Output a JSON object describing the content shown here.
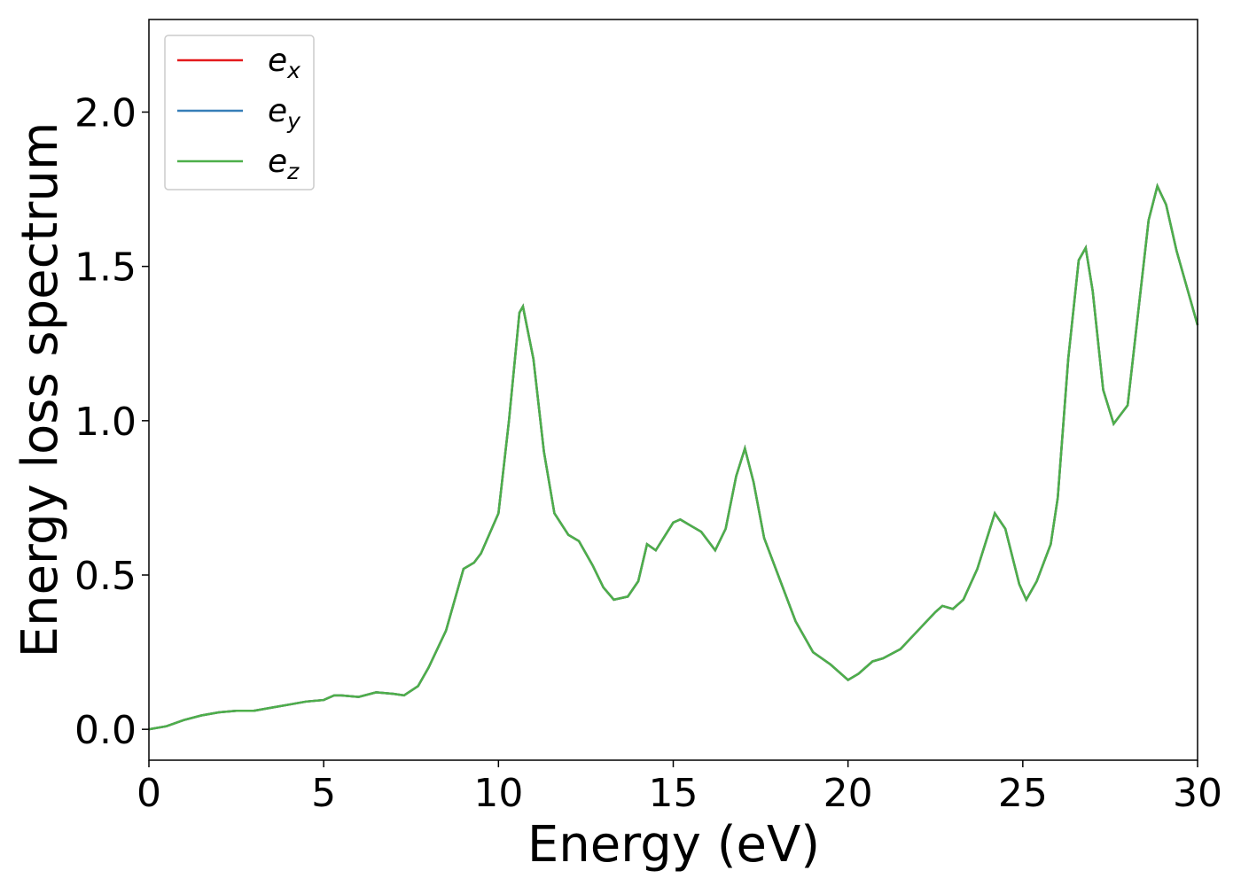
{
  "chart_data": {
    "type": "line",
    "xlabel": "Energy (eV)",
    "ylabel": "Energy loss spectrum",
    "x": [
      0,
      0.5,
      1,
      1.5,
      2,
      2.5,
      3,
      3.5,
      4,
      4.5,
      5,
      5.3,
      5.5,
      6,
      6.5,
      7,
      7.3,
      7.7,
      8,
      8.5,
      9,
      9.3,
      9.5,
      10,
      10.3,
      10.6,
      10.7,
      11,
      11.3,
      11.6,
      12,
      12.3,
      12.7,
      13,
      13.3,
      13.7,
      14,
      14.25,
      14.5,
      15,
      15.2,
      15.5,
      15.8,
      16.2,
      16.5,
      16.8,
      17.05,
      17.3,
      17.6,
      18,
      18.5,
      19,
      19.5,
      20,
      20.3,
      20.7,
      21,
      21.5,
      22,
      22.5,
      22.7,
      23,
      23.3,
      23.7,
      24.2,
      24.5,
      24.9,
      25.1,
      25.4,
      25.8,
      26,
      26.3,
      26.6,
      26.8,
      27,
      27.3,
      27.6,
      28,
      28.3,
      28.6,
      28.85,
      29.1,
      29.4,
      29.7,
      30
    ],
    "series": [
      {
        "name": "e_x",
        "color": "#e41a1c",
        "values": [
          0,
          0.01,
          0.03,
          0.045,
          0.055,
          0.06,
          0.06,
          0.07,
          0.08,
          0.09,
          0.095,
          0.11,
          0.11,
          0.105,
          0.12,
          0.115,
          0.11,
          0.14,
          0.2,
          0.32,
          0.52,
          0.54,
          0.57,
          0.7,
          1.0,
          1.35,
          1.37,
          1.2,
          0.9,
          0.7,
          0.63,
          0.61,
          0.53,
          0.46,
          0.42,
          0.43,
          0.48,
          0.6,
          0.58,
          0.67,
          0.68,
          0.66,
          0.64,
          0.58,
          0.65,
          0.82,
          0.91,
          0.8,
          0.62,
          0.5,
          0.35,
          0.25,
          0.21,
          0.16,
          0.18,
          0.22,
          0.23,
          0.26,
          0.32,
          0.38,
          0.4,
          0.39,
          0.42,
          0.52,
          0.7,
          0.65,
          0.47,
          0.42,
          0.48,
          0.6,
          0.75,
          1.2,
          1.52,
          1.56,
          1.42,
          1.1,
          0.99,
          1.05,
          1.35,
          1.65,
          1.76,
          1.7,
          1.55,
          1.43,
          1.31
        ]
      },
      {
        "name": "e_y",
        "color": "#377eb8",
        "values": [
          0,
          0.01,
          0.03,
          0.045,
          0.055,
          0.06,
          0.06,
          0.07,
          0.08,
          0.09,
          0.095,
          0.11,
          0.11,
          0.105,
          0.12,
          0.115,
          0.11,
          0.14,
          0.2,
          0.32,
          0.52,
          0.54,
          0.57,
          0.7,
          1.0,
          1.35,
          1.37,
          1.2,
          0.9,
          0.7,
          0.63,
          0.61,
          0.53,
          0.46,
          0.42,
          0.43,
          0.48,
          0.6,
          0.58,
          0.67,
          0.68,
          0.66,
          0.64,
          0.58,
          0.65,
          0.82,
          0.91,
          0.8,
          0.62,
          0.5,
          0.35,
          0.25,
          0.21,
          0.16,
          0.18,
          0.22,
          0.23,
          0.26,
          0.32,
          0.38,
          0.4,
          0.39,
          0.42,
          0.52,
          0.7,
          0.65,
          0.47,
          0.42,
          0.48,
          0.6,
          0.75,
          1.2,
          1.52,
          1.56,
          1.42,
          1.1,
          0.99,
          1.05,
          1.35,
          1.65,
          1.76,
          1.7,
          1.55,
          1.43,
          1.31
        ]
      },
      {
        "name": "e_z",
        "color": "#4daf4a",
        "values": [
          0,
          0.01,
          0.03,
          0.045,
          0.055,
          0.06,
          0.06,
          0.07,
          0.08,
          0.09,
          0.095,
          0.11,
          0.11,
          0.105,
          0.12,
          0.115,
          0.11,
          0.14,
          0.2,
          0.32,
          0.52,
          0.54,
          0.57,
          0.7,
          1.0,
          1.35,
          1.37,
          1.2,
          0.9,
          0.7,
          0.63,
          0.61,
          0.53,
          0.46,
          0.42,
          0.43,
          0.48,
          0.6,
          0.58,
          0.67,
          0.68,
          0.66,
          0.64,
          0.58,
          0.65,
          0.82,
          0.91,
          0.8,
          0.62,
          0.5,
          0.35,
          0.25,
          0.21,
          0.16,
          0.18,
          0.22,
          0.23,
          0.26,
          0.32,
          0.38,
          0.4,
          0.39,
          0.42,
          0.52,
          0.7,
          0.65,
          0.47,
          0.42,
          0.48,
          0.6,
          0.75,
          1.2,
          1.52,
          1.56,
          1.42,
          1.1,
          0.99,
          1.05,
          1.35,
          1.65,
          1.76,
          1.7,
          1.55,
          1.43,
          1.31
        ]
      }
    ],
    "xlim": [
      0,
      30
    ],
    "xticks": [
      0,
      5,
      10,
      15,
      20,
      25,
      30
    ],
    "ylim": [
      -0.1,
      2.3
    ],
    "yticks": [
      {
        "value": 0,
        "label": "0.0"
      },
      {
        "value": 0.5,
        "label": "0.5"
      },
      {
        "value": 1,
        "label": "1.0"
      },
      {
        "value": 1.5,
        "label": "1.5"
      },
      {
        "value": 2,
        "label": "2.0"
      }
    ],
    "legend": "upper left",
    "grid": false
  }
}
